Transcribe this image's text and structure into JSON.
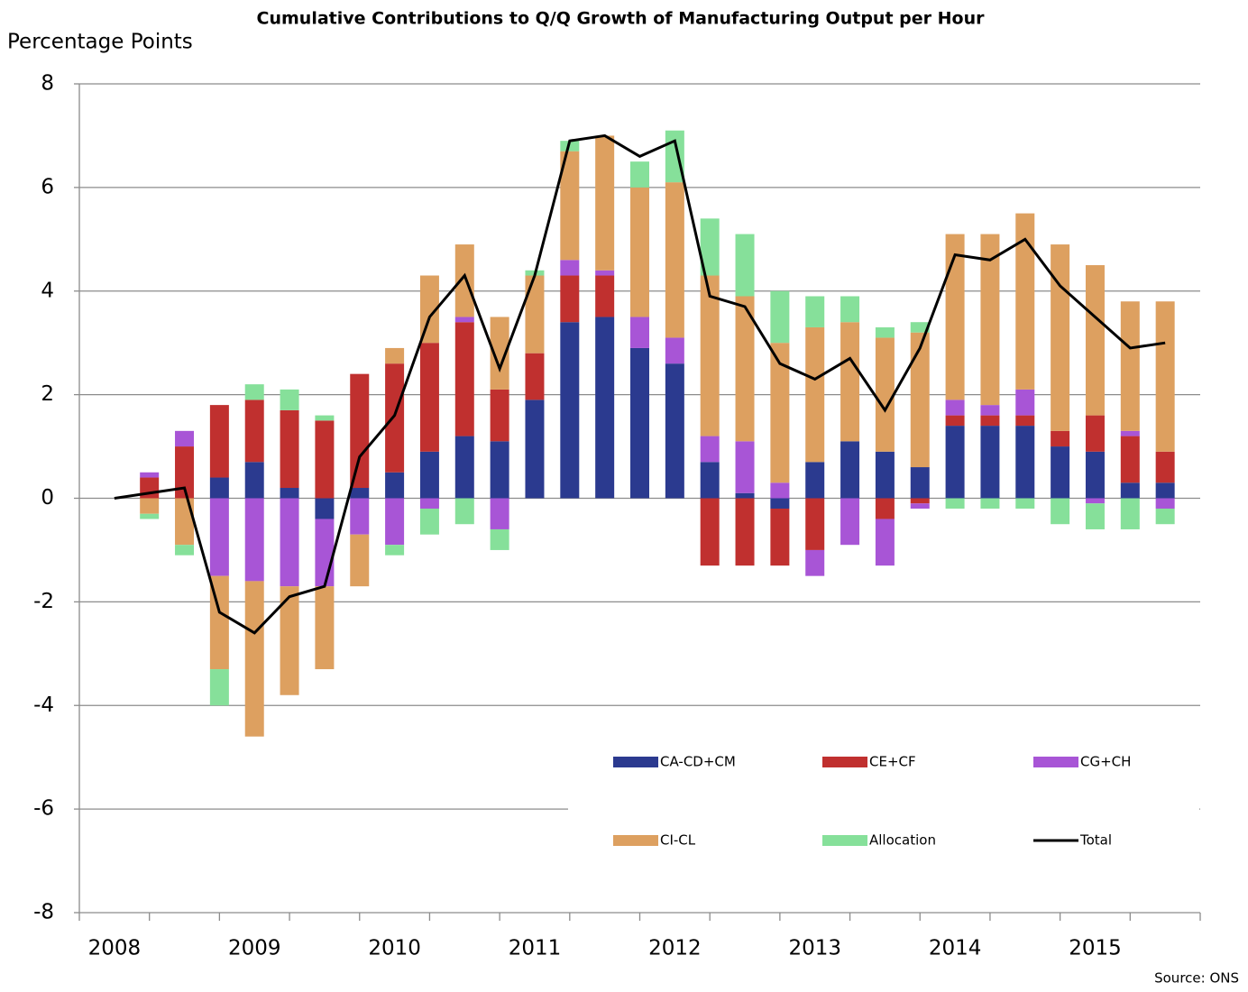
{
  "chart_data": {
    "type": "bar",
    "stacked": true,
    "title": "Cumulative Contributions to Q/Q Growth of Manufacturing  Output per Hour",
    "y_label": "Percentage Points",
    "source": "Source: ONS",
    "categories": [
      "2008",
      null,
      null,
      null,
      "2009",
      null,
      null,
      null,
      "2010",
      null,
      null,
      null,
      "2011",
      null,
      null,
      null,
      "2012",
      null,
      null,
      null,
      "2013",
      null,
      null,
      null,
      "2014",
      null,
      null,
      null,
      "2015",
      null,
      null
    ],
    "ylim": [
      -8,
      8
    ],
    "yticks": [
      -8,
      -6,
      -4,
      -2,
      0,
      2,
      4,
      6,
      8
    ],
    "grid": true,
    "series": [
      {
        "name": "CA-CD+CM",
        "color": "#2b3a8f",
        "values": [
          null,
          0,
          0,
          0.4,
          0.7,
          0.2,
          -0.4,
          0.2,
          0.5,
          0.9,
          1.2,
          1.1,
          1.9,
          3.4,
          3.5,
          2.9,
          2.6,
          0.7,
          0.1,
          -0.2,
          0.7,
          1.1,
          0.9,
          0.6,
          1.4,
          1.4,
          1.4,
          1.0,
          0.9,
          0.3,
          0.3
        ]
      },
      {
        "name": "CE+CF",
        "color": "#c0302f",
        "values": [
          null,
          0.4,
          1.0,
          1.4,
          1.2,
          1.5,
          1.5,
          2.2,
          2.1,
          2.1,
          2.2,
          1.0,
          0.9,
          0.9,
          0.8,
          0,
          0,
          -1.3,
          -1.3,
          -1.1,
          -1.0,
          0,
          -0.4,
          -0.1,
          0.2,
          0.2,
          0.2,
          0.3,
          0.7,
          0.9,
          0.6
        ]
      },
      {
        "name": "CG+CH",
        "color": "#a855d6",
        "values": [
          null,
          0.1,
          0.3,
          -1.5,
          -1.6,
          -1.7,
          -1.3,
          -0.7,
          -0.9,
          -0.2,
          0.1,
          -0.6,
          0,
          0.3,
          0.1,
          0.6,
          0.5,
          0.5,
          1.0,
          0.3,
          -0.5,
          -0.9,
          -0.9,
          -0.1,
          0.3,
          0.2,
          0.5,
          0,
          -0.1,
          0.1,
          -0.2
        ]
      },
      {
        "name": "CI-CL",
        "color": "#dda060",
        "values": [
          null,
          -0.3,
          -0.9,
          -1.8,
          -3.0,
          -2.1,
          -1.6,
          -1.0,
          0.3,
          1.3,
          1.4,
          1.4,
          1.5,
          2.1,
          2.6,
          2.5,
          3.0,
          3.1,
          2.8,
          2.7,
          2.6,
          2.3,
          2.2,
          2.6,
          3.2,
          3.3,
          3.4,
          3.6,
          2.9,
          2.5,
          2.9
        ]
      },
      {
        "name": "Allocation",
        "color": "#86e09a",
        "values": [
          null,
          -0.1,
          -0.2,
          -0.7,
          0.3,
          0.4,
          0.1,
          0,
          -0.2,
          -0.5,
          -0.5,
          -0.4,
          0.1,
          0.2,
          0,
          0.5,
          1.0,
          1.1,
          1.2,
          1.0,
          0.6,
          0.5,
          0.2,
          0.2,
          -0.2,
          -0.2,
          -0.2,
          -0.5,
          -0.5,
          -0.6,
          -0.3
        ]
      },
      {
        "name": "Total",
        "color": "#000000",
        "type": "line",
        "values": [
          0,
          0.1,
          0.2,
          -2.2,
          -2.6,
          -1.9,
          -1.7,
          0.8,
          1.6,
          3.5,
          4.3,
          2.5,
          4.3,
          6.9,
          7.0,
          6.6,
          6.9,
          3.9,
          3.7,
          2.6,
          2.3,
          2.7,
          1.7,
          2.9,
          4.7,
          4.6,
          5.0,
          4.1,
          3.5,
          2.9,
          3.0
        ]
      }
    ]
  }
}
